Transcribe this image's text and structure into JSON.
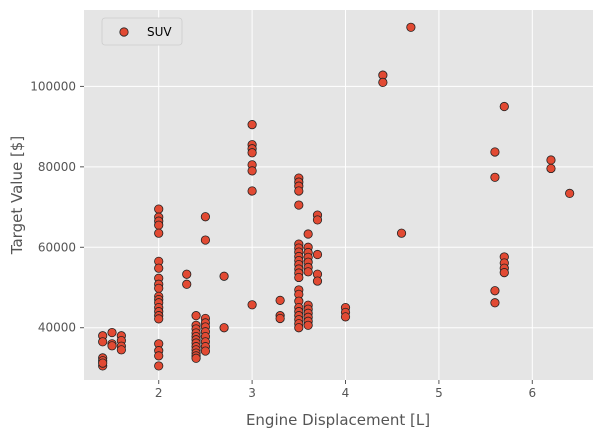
{
  "chart_data": {
    "type": "scatter",
    "xlabel": "Engine Displacement [L]",
    "ylabel": "Target Value [$]",
    "xlim": [
      1.2,
      6.65
    ],
    "ylim": [
      27000,
      119000
    ],
    "x_ticks": [
      2,
      3,
      4,
      5,
      6
    ],
    "y_ticks": [
      40000,
      60000,
      80000,
      100000
    ],
    "grid": true,
    "legend_position": "top-left",
    "colors": {
      "marker_fill": "#e24a33",
      "marker_edge": "#222222",
      "background": "#e5e5e5",
      "grid": "#ffffff"
    },
    "series": [
      {
        "name": "SUV",
        "points": [
          [
            1.4,
            38000
          ],
          [
            1.4,
            36500
          ],
          [
            1.4,
            32500
          ],
          [
            1.4,
            31800
          ],
          [
            1.4,
            30500
          ],
          [
            1.4,
            31200
          ],
          [
            1.5,
            38800
          ],
          [
            1.5,
            36000
          ],
          [
            1.5,
            35500
          ],
          [
            1.6,
            38000
          ],
          [
            1.6,
            36800
          ],
          [
            1.6,
            35400
          ],
          [
            1.6,
            34500
          ],
          [
            2.0,
            69500
          ],
          [
            2.0,
            67500
          ],
          [
            2.0,
            66500
          ],
          [
            2.0,
            65500
          ],
          [
            2.0,
            63500
          ],
          [
            2.0,
            56500
          ],
          [
            2.0,
            54800
          ],
          [
            2.0,
            52300
          ],
          [
            2.0,
            50800
          ],
          [
            2.0,
            49800
          ],
          [
            2.0,
            47800
          ],
          [
            2.0,
            47000
          ],
          [
            2.0,
            46200
          ],
          [
            2.0,
            45000
          ],
          [
            2.0,
            44000
          ],
          [
            2.0,
            43000
          ],
          [
            2.0,
            42200
          ],
          [
            2.0,
            36000
          ],
          [
            2.0,
            34300
          ],
          [
            2.0,
            33000
          ],
          [
            2.0,
            30500
          ],
          [
            2.3,
            53300
          ],
          [
            2.3,
            50800
          ],
          [
            2.4,
            43000
          ],
          [
            2.4,
            40600
          ],
          [
            2.4,
            39700
          ],
          [
            2.4,
            38700
          ],
          [
            2.4,
            37800
          ],
          [
            2.4,
            37000
          ],
          [
            2.4,
            36200
          ],
          [
            2.4,
            35300
          ],
          [
            2.4,
            34500
          ],
          [
            2.4,
            33700
          ],
          [
            2.4,
            33000
          ],
          [
            2.4,
            32400
          ],
          [
            2.5,
            67600
          ],
          [
            2.5,
            61800
          ],
          [
            2.5,
            42300
          ],
          [
            2.5,
            41200
          ],
          [
            2.5,
            40200
          ],
          [
            2.5,
            39000
          ],
          [
            2.5,
            37800
          ],
          [
            2.5,
            36500
          ],
          [
            2.5,
            35300
          ],
          [
            2.5,
            34200
          ],
          [
            2.7,
            52800
          ],
          [
            2.7,
            40000
          ],
          [
            3.0,
            90500
          ],
          [
            3.0,
            85500
          ],
          [
            3.0,
            84500
          ],
          [
            3.0,
            83500
          ],
          [
            3.0,
            80500
          ],
          [
            3.0,
            79000
          ],
          [
            3.0,
            74000
          ],
          [
            3.0,
            45700
          ],
          [
            3.3,
            46800
          ],
          [
            3.3,
            43000
          ],
          [
            3.3,
            42300
          ],
          [
            3.5,
            77200
          ],
          [
            3.5,
            76200
          ],
          [
            3.5,
            75200
          ],
          [
            3.5,
            74000
          ],
          [
            3.5,
            70500
          ],
          [
            3.5,
            60800
          ],
          [
            3.5,
            59800
          ],
          [
            3.5,
            58800
          ],
          [
            3.5,
            57700
          ],
          [
            3.5,
            56700
          ],
          [
            3.5,
            55700
          ],
          [
            3.5,
            54600
          ],
          [
            3.5,
            53600
          ],
          [
            3.5,
            52500
          ],
          [
            3.5,
            49400
          ],
          [
            3.5,
            48300
          ],
          [
            3.5,
            46600
          ],
          [
            3.5,
            45000
          ],
          [
            3.5,
            44000
          ],
          [
            3.5,
            43000
          ],
          [
            3.5,
            42000
          ],
          [
            3.5,
            41000
          ],
          [
            3.5,
            40000
          ],
          [
            3.6,
            63300
          ],
          [
            3.6,
            60000
          ],
          [
            3.6,
            58700
          ],
          [
            3.6,
            57500
          ],
          [
            3.6,
            56300
          ],
          [
            3.6,
            55000
          ],
          [
            3.6,
            53900
          ],
          [
            3.6,
            45600
          ],
          [
            3.6,
            44600
          ],
          [
            3.6,
            43600
          ],
          [
            3.6,
            42600
          ],
          [
            3.6,
            41600
          ],
          [
            3.6,
            40600
          ],
          [
            3.7,
            68000
          ],
          [
            3.7,
            66800
          ],
          [
            3.7,
            58200
          ],
          [
            3.7,
            53300
          ],
          [
            3.7,
            51600
          ],
          [
            4.0,
            45000
          ],
          [
            4.0,
            43800
          ],
          [
            4.0,
            42700
          ],
          [
            4.4,
            102800
          ],
          [
            4.4,
            101000
          ],
          [
            4.6,
            63500
          ],
          [
            4.7,
            114700
          ],
          [
            5.6,
            83700
          ],
          [
            5.6,
            77400
          ],
          [
            5.6,
            49200
          ],
          [
            5.6,
            46200
          ],
          [
            5.7,
            95000
          ],
          [
            5.7,
            57600
          ],
          [
            5.7,
            56100
          ],
          [
            5.7,
            54800
          ],
          [
            5.7,
            53700
          ],
          [
            6.2,
            81700
          ],
          [
            6.2,
            79600
          ],
          [
            6.4,
            73400
          ]
        ]
      }
    ]
  }
}
